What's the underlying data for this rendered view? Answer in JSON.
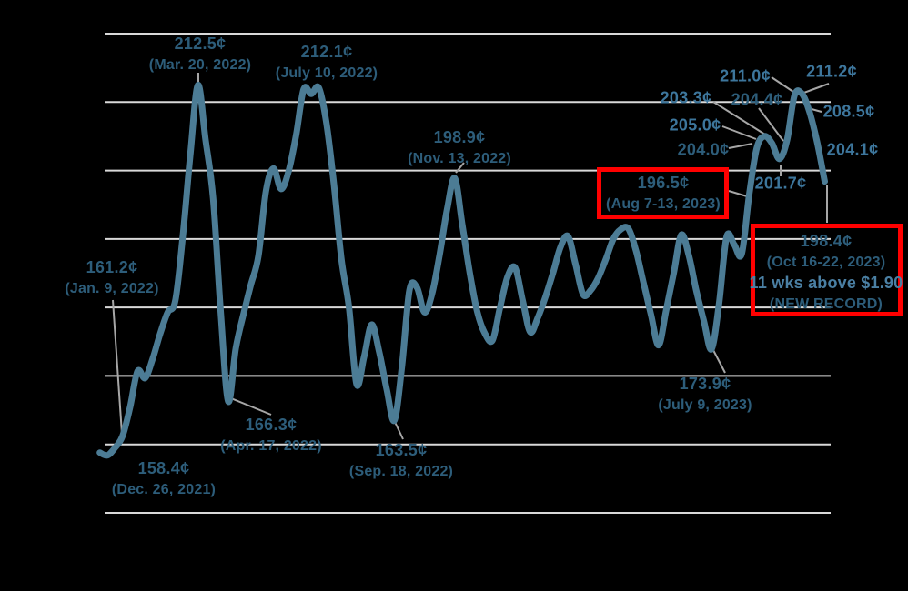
{
  "chart_data": {
    "type": "line",
    "title": "",
    "unit_suffix": "¢",
    "x_axis": {
      "label": "",
      "tick_labels_visible": false,
      "point_interval": "1 week",
      "first_labeled_point": "Dec. 26, 2021",
      "last_labeled_point": "Oct 16-22, 2023"
    },
    "y_axis": {
      "label": "",
      "tick_labels_visible": false,
      "ylim": [
        150,
        220
      ],
      "gridlines": [
        220,
        210,
        200,
        190,
        180,
        170,
        160,
        150
      ],
      "grid": true
    },
    "legend": false,
    "values": [
      158.8,
      158.4,
      159.5,
      161.2,
      165.4,
      170.7,
      169.7,
      172.5,
      176.2,
      179.3,
      181.0,
      190.5,
      202.5,
      212.5,
      204.5,
      196.0,
      179.5,
      166.3,
      174.0,
      178.9,
      183.3,
      187.5,
      197.0,
      200.3,
      197.3,
      199.9,
      205.2,
      211.9,
      211.2,
      212.1,
      207.0,
      198.0,
      187.0,
      180.0,
      168.8,
      172.8,
      177.5,
      173.5,
      168.0,
      163.5,
      171.3,
      182.5,
      182.9,
      179.3,
      182.0,
      187.7,
      194.4,
      198.9,
      192.1,
      185.0,
      179.3,
      176.2,
      175.2,
      180.0,
      184.5,
      185.8,
      181.0,
      176.4,
      178.5,
      181.5,
      185.0,
      188.8,
      190.4,
      186.3,
      181.9,
      182.5,
      184.3,
      187.0,
      190.0,
      191.4,
      191.5,
      188.3,
      183.6,
      178.9,
      174.5,
      179.6,
      185.0,
      190.6,
      187.6,
      182.4,
      178.0,
      173.9,
      180.5,
      190.3,
      189.2,
      187.8,
      196.5,
      203.3,
      205.0,
      204.0,
      201.7,
      204.4,
      211.0,
      211.2,
      208.5,
      204.1,
      198.4
    ],
    "annotations": {
      "dec26_2021": {
        "value": "158.4¢",
        "date": "(Dec. 26, 2021)",
        "point_index": 1
      },
      "jan9_2022": {
        "value": "161.2¢",
        "date": "(Jan. 9, 2022)",
        "point_index": 3
      },
      "mar20_2022": {
        "value": "212.5¢",
        "date": "(Mar. 20, 2022)",
        "point_index": 13
      },
      "apr17_2022": {
        "value": "166.3¢",
        "date": "(Apr. 17, 2022)",
        "point_index": 17
      },
      "jul10_2022": {
        "value": "212.1¢",
        "date": "(July 10, 2022)",
        "point_index": 29
      },
      "sep18_2022": {
        "value": "163.5¢",
        "date": "(Sep. 18, 2022)",
        "point_index": 39
      },
      "nov13_2022": {
        "value": "198.9¢",
        "date": "(Nov. 13, 2022)",
        "point_index": 47
      },
      "jul9_2023": {
        "value": "173.9¢",
        "date": "(July 9, 2023)",
        "point_index": 81
      },
      "aug7_13_2023": {
        "value": "196.5¢",
        "date": "(Aug 7-13, 2023)",
        "point_index": 86,
        "highlighted": true
      },
      "oct16_22_2023": {
        "value": "198.4¢",
        "date": "(Oct 16-22, 2023)",
        "note": "11 wks above $1.90",
        "record": "(NEW RECORD)",
        "point_index": 96,
        "highlighted": true
      },
      "p203_3": {
        "value": "203.3¢",
        "point_index": 87
      },
      "p205_0": {
        "value": "205.0¢",
        "point_index": 88
      },
      "p204_0": {
        "value": "204.0¢",
        "point_index": 89
      },
      "p201_7": {
        "value": "201.7¢",
        "point_index": 90
      },
      "p204_4": {
        "value": "204.4¢",
        "point_index": 91
      },
      "p211_0": {
        "value": "211.0¢",
        "point_index": 92
      },
      "p211_2": {
        "value": "211.2¢",
        "point_index": 93
      },
      "p208_5": {
        "value": "208.5¢",
        "point_index": 94
      },
      "p204_1": {
        "value": "204.1¢",
        "point_index": 95
      }
    }
  },
  "colors": {
    "background": "#000000",
    "line": "#4C7C95",
    "grid": "#D9D9D9",
    "leader": "#A6A6A6",
    "highlight_box": "#FF0000",
    "label_dark": "#2D5D7A",
    "label_light": "#3D769C"
  }
}
